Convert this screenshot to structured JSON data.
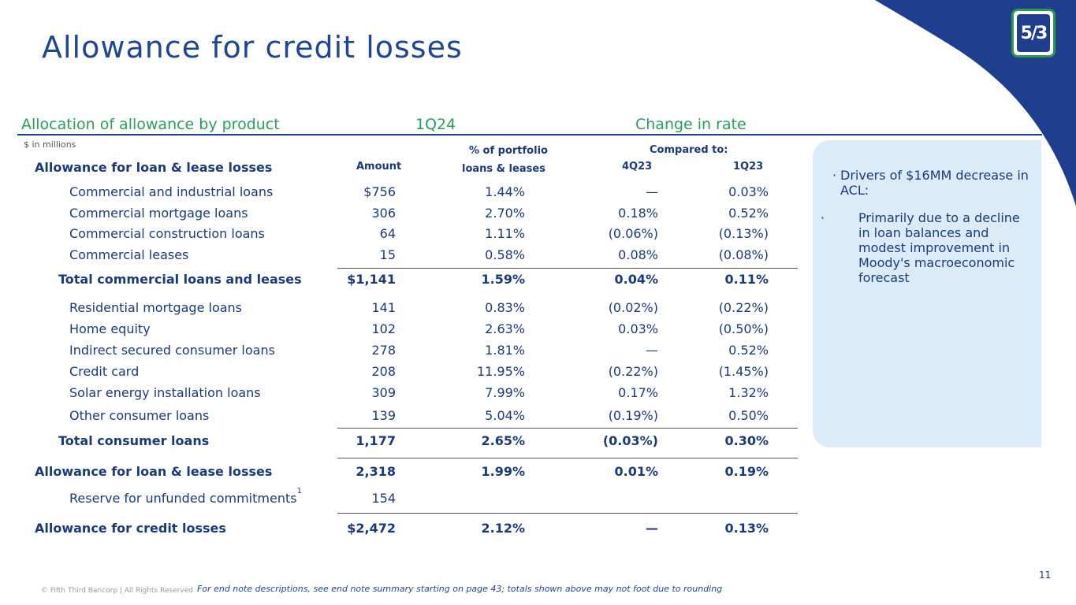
{
  "title": "Allowance for credit losses",
  "logo_text": "5/3",
  "headers": {
    "section": "Allocation of allowance by product",
    "period": "1Q24",
    "change": "Change in rate",
    "units": "$ in millions",
    "amount": "Amount",
    "pct_line1": "% of portfolio",
    "pct_line2": "loans & leases",
    "compared": "Compared to:",
    "q4": "4Q23",
    "q1": "1Q23",
    "allowance_head": "Allowance for loan & lease losses"
  },
  "rows": [
    {
      "label": "Commercial and industrial loans",
      "amount": "$756",
      "pct": "1.44%",
      "q4": "—",
      "q1": "0.03%"
    },
    {
      "label": "Commercial mortgage loans",
      "amount": "306",
      "pct": "2.70%",
      "q4": "0.18%",
      "q1": "0.52%"
    },
    {
      "label": "Commercial construction loans",
      "amount": "64",
      "pct": "1.11%",
      "q4": "(0.06%)",
      "q1": "(0.13%)"
    },
    {
      "label": "Commercial leases",
      "amount": "15",
      "pct": "0.58%",
      "q4": "0.08%",
      "q1": "(0.08%)"
    },
    {
      "label": "Total commercial loans and leases",
      "amount": "$1,141",
      "pct": "1.59%",
      "q4": "0.04%",
      "q1": "0.11%"
    },
    {
      "label": "Residential mortgage loans",
      "amount": "141",
      "pct": "0.83%",
      "q4": "(0.02%)",
      "q1": "(0.22%)"
    },
    {
      "label": "Home equity",
      "amount": "102",
      "pct": "2.63%",
      "q4": "0.03%",
      "q1": "(0.50%)"
    },
    {
      "label": "Indirect secured consumer loans",
      "amount": "278",
      "pct": "1.81%",
      "q4": "—",
      "q1": "0.52%"
    },
    {
      "label": "Credit card",
      "amount": "208",
      "pct": "11.95%",
      "q4": "(0.22%)",
      "q1": "(1.45%)"
    },
    {
      "label": "Solar energy installation loans",
      "amount": "309",
      "pct": "7.99%",
      "q4": "0.17%",
      "q1": "1.32%"
    },
    {
      "label": "Other consumer loans",
      "amount": "139",
      "pct": "5.04%",
      "q4": "(0.19%)",
      "q1": "0.50%"
    },
    {
      "label": "Total consumer loans",
      "amount": "1,177",
      "pct": "2.65%",
      "q4": "(0.03%)",
      "q1": "0.30%"
    },
    {
      "label": "Allowance for loan & lease losses",
      "amount": "2,318",
      "pct": "1.99%",
      "q4": "0.01%",
      "q1": "0.19%"
    },
    {
      "label": "Reserve for unfunded commitments",
      "sup": "1",
      "amount": "154",
      "pct": "",
      "q4": "",
      "q1": ""
    },
    {
      "label": "Allowance for credit losses",
      "amount": "$2,472",
      "pct": "2.12%",
      "q4": "—",
      "q1": "0.13%"
    }
  ],
  "panel": {
    "bullet1": "Drivers of $16MM decrease in ACL:",
    "bullet2": "Primarily due to a decline in loan balances and modest improvement in Moody's macroeconomic forecast"
  },
  "footer": {
    "page_number": "11",
    "copyright": "© Fifth Third Bancorp | All Rights Reserved",
    "endnote": "For end note descriptions, see end note summary starting on page 43; totals shown above may not foot due to rounding"
  },
  "colors": {
    "brand_blue": "#1f3f8e",
    "brand_green": "#28a05a",
    "panel_bg": "#dcebf8"
  }
}
